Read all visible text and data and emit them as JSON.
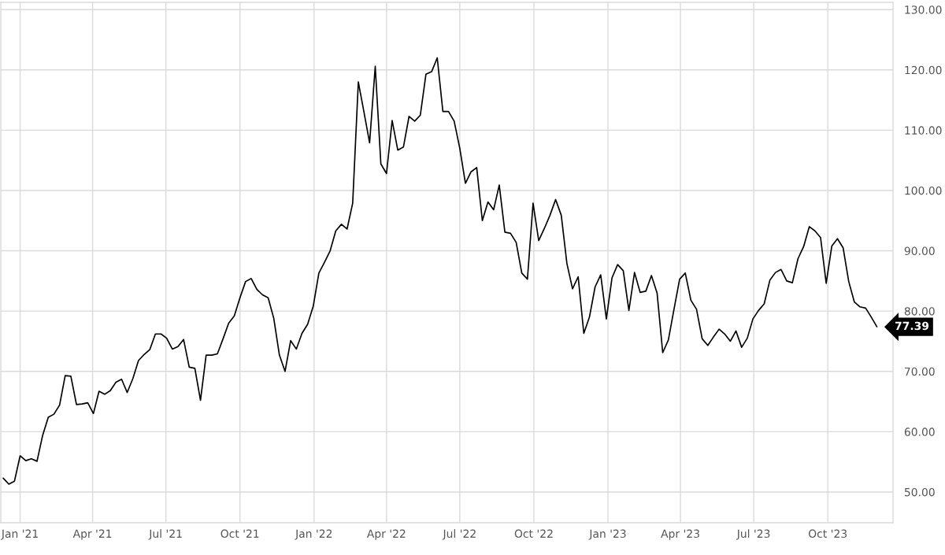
{
  "chart_data": {
    "type": "line",
    "x": [
      "2020-12-11",
      "2020-12-18",
      "2020-12-25",
      "2021-01-01",
      "2021-01-08",
      "2021-01-15",
      "2021-01-22",
      "2021-01-29",
      "2021-02-05",
      "2021-02-12",
      "2021-02-19",
      "2021-02-26",
      "2021-03-05",
      "2021-03-12",
      "2021-03-19",
      "2021-03-26",
      "2021-04-02",
      "2021-04-09",
      "2021-04-16",
      "2021-04-23",
      "2021-04-30",
      "2021-05-07",
      "2021-05-14",
      "2021-05-21",
      "2021-05-28",
      "2021-06-04",
      "2021-06-11",
      "2021-06-18",
      "2021-06-25",
      "2021-07-02",
      "2021-07-09",
      "2021-07-16",
      "2021-07-23",
      "2021-07-30",
      "2021-08-06",
      "2021-08-13",
      "2021-08-20",
      "2021-08-27",
      "2021-09-03",
      "2021-09-10",
      "2021-09-17",
      "2021-09-24",
      "2021-10-01",
      "2021-10-08",
      "2021-10-15",
      "2021-10-22",
      "2021-10-29",
      "2021-11-05",
      "2021-11-12",
      "2021-11-19",
      "2021-11-26",
      "2021-12-03",
      "2021-12-10",
      "2021-12-17",
      "2021-12-24",
      "2021-12-31",
      "2022-01-07",
      "2022-01-14",
      "2022-01-21",
      "2022-01-28",
      "2022-02-04",
      "2022-02-11",
      "2022-02-18",
      "2022-02-25",
      "2022-03-04",
      "2022-03-11",
      "2022-03-18",
      "2022-03-25",
      "2022-04-01",
      "2022-04-08",
      "2022-04-15",
      "2022-04-22",
      "2022-04-29",
      "2022-05-06",
      "2022-05-13",
      "2022-05-20",
      "2022-05-27",
      "2022-06-03",
      "2022-06-10",
      "2022-06-17",
      "2022-06-24",
      "2022-07-01",
      "2022-07-08",
      "2022-07-15",
      "2022-07-22",
      "2022-07-29",
      "2022-08-05",
      "2022-08-12",
      "2022-08-19",
      "2022-08-26",
      "2022-09-02",
      "2022-09-09",
      "2022-09-16",
      "2022-09-23",
      "2022-09-30",
      "2022-10-07",
      "2022-10-14",
      "2022-10-21",
      "2022-10-28",
      "2022-11-04",
      "2022-11-11",
      "2022-11-18",
      "2022-11-25",
      "2022-12-02",
      "2022-12-09",
      "2022-12-16",
      "2022-12-23",
      "2022-12-30",
      "2023-01-06",
      "2023-01-13",
      "2023-01-20",
      "2023-01-27",
      "2023-02-03",
      "2023-02-10",
      "2023-02-17",
      "2023-02-24",
      "2023-03-03",
      "2023-03-10",
      "2023-03-17",
      "2023-03-24",
      "2023-03-31",
      "2023-04-07",
      "2023-04-14",
      "2023-04-21",
      "2023-04-28",
      "2023-05-05",
      "2023-05-12",
      "2023-05-19",
      "2023-05-26",
      "2023-06-02",
      "2023-06-09",
      "2023-06-16",
      "2023-06-23",
      "2023-06-30",
      "2023-07-07",
      "2023-07-14",
      "2023-07-21",
      "2023-07-28",
      "2023-08-04",
      "2023-08-11",
      "2023-08-18",
      "2023-08-25",
      "2023-09-01",
      "2023-09-08",
      "2023-09-15",
      "2023-09-22",
      "2023-09-29",
      "2023-10-06",
      "2023-10-13",
      "2023-10-20",
      "2023-10-27",
      "2023-11-03",
      "2023-11-10",
      "2023-11-17",
      "2023-11-24",
      "2023-12-01"
    ],
    "series": [
      {
        "color": "#000000",
        "values": [
          52.3,
          51.3,
          51.8,
          56.0,
          55.2,
          55.5,
          55.1,
          59.4,
          62.4,
          62.9,
          64.4,
          69.3,
          69.2,
          64.5,
          64.6,
          64.8,
          63.0,
          66.7,
          66.2,
          66.8,
          68.2,
          68.7,
          66.5,
          68.8,
          71.8,
          72.8,
          73.6,
          76.2,
          76.2,
          75.5,
          73.7,
          74.1,
          75.3,
          70.7,
          70.5,
          65.2,
          72.7,
          72.7,
          72.9,
          75.4,
          78.0,
          79.2,
          82.2,
          84.9,
          85.4,
          83.6,
          82.7,
          82.2,
          78.8,
          72.7,
          70.0,
          75.1,
          73.7,
          76.3,
          77.8,
          80.8,
          86.3,
          88.1,
          90.0,
          93.3,
          94.4,
          93.6,
          97.9,
          118.0,
          113.0,
          107.9,
          120.6,
          104.4,
          102.8,
          111.6,
          106.7,
          107.2,
          112.3,
          111.5,
          112.5,
          119.3,
          119.7,
          122.0,
          113.1,
          113.1,
          111.5,
          107.0,
          101.2,
          103.1,
          103.8,
          95.0,
          98.1,
          96.8,
          100.9,
          93.1,
          92.9,
          91.4,
          86.3,
          85.3,
          97.9,
          91.7,
          93.7,
          95.9,
          98.5,
          95.9,
          87.9,
          83.7,
          85.7,
          76.3,
          79.0,
          84.0,
          86.0,
          78.7,
          85.5,
          87.7,
          86.7,
          80.1,
          86.4,
          83.1,
          83.3,
          85.9,
          83.0,
          73.1,
          75.2,
          80.3,
          85.3,
          86.3,
          81.8,
          80.3,
          75.4,
          74.3,
          75.7,
          77.0,
          76.2,
          75.0,
          76.7,
          74.0,
          75.5,
          78.7,
          80.1,
          81.2,
          85.1,
          86.4,
          86.9,
          85.0,
          84.7,
          88.7,
          90.7,
          94.0,
          93.3,
          92.2,
          84.6,
          90.8,
          92.0,
          90.5,
          84.9,
          81.5,
          80.7,
          80.5,
          79.0,
          77.39
        ]
      }
    ],
    "xlim": [
      "2020-12-08",
      "2023-12-21"
    ],
    "xticks": [
      {
        "value": "2021-01-01",
        "label": "Jan '21"
      },
      {
        "value": "2021-04-01",
        "label": "Apr '21"
      },
      {
        "value": "2021-07-01",
        "label": "Jul '21"
      },
      {
        "value": "2021-10-01",
        "label": "Oct '21"
      },
      {
        "value": "2022-01-01",
        "label": "Jan '22"
      },
      {
        "value": "2022-04-01",
        "label": "Apr '22"
      },
      {
        "value": "2022-07-01",
        "label": "Jul '22"
      },
      {
        "value": "2022-10-01",
        "label": "Oct '22"
      },
      {
        "value": "2023-01-01",
        "label": "Jan '23"
      },
      {
        "value": "2023-04-01",
        "label": "Apr '23"
      },
      {
        "value": "2023-07-01",
        "label": "Jul '23"
      },
      {
        "value": "2023-10-01",
        "label": "Oct '23"
      }
    ],
    "ylim": [
      44.9,
      131.2
    ],
    "yticks": [
      {
        "value": 50,
        "label": "50.00"
      },
      {
        "value": 60,
        "label": "60.00"
      },
      {
        "value": 70,
        "label": "70.00"
      },
      {
        "value": 80,
        "label": "80.00"
      },
      {
        "value": 90,
        "label": "90.00"
      },
      {
        "value": 100,
        "label": "100.00"
      },
      {
        "value": 110,
        "label": "110.00"
      },
      {
        "value": 120,
        "label": "120.00"
      },
      {
        "value": 130,
        "label": "130.00"
      }
    ],
    "grid": true,
    "line_style": "solid",
    "annotations": [
      {
        "text": "77.39",
        "x": "2023-12-01",
        "y": 77.39
      }
    ]
  }
}
